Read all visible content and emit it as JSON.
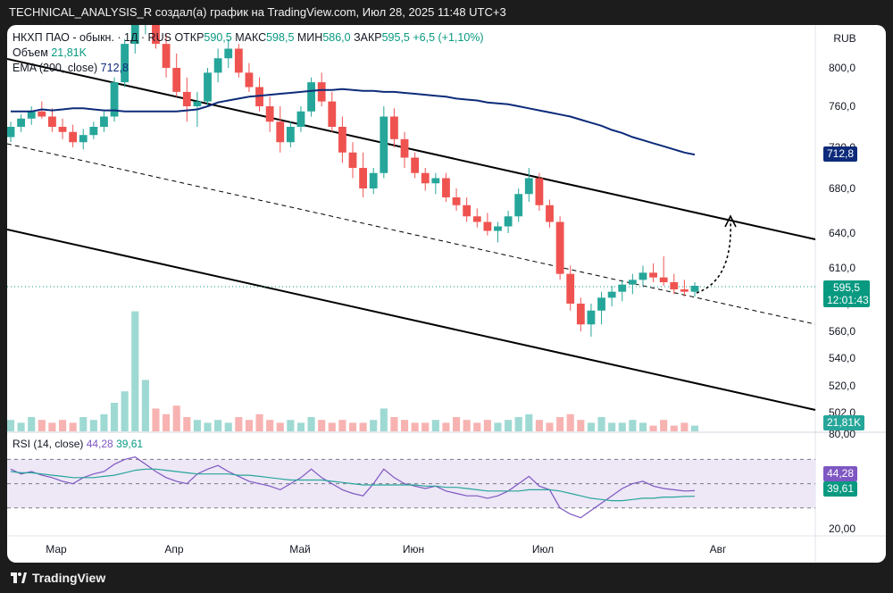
{
  "header": {
    "caption": "TECHNICAL_ANALYSIS_R создал(а) график на TradingView.com, Июл 28, 2025 11:48 UTC+3"
  },
  "legend": {
    "symbol": "НКХП ПАО - обыкн. · 1Д · RUS",
    "open_label": "ОТКР",
    "open_value": "590,5",
    "high_label": "МАКС",
    "high_value": "598,5",
    "low_label": "МИН",
    "low_value": "586,0",
    "close_label": "ЗАКР",
    "close_value": "595,5",
    "change": "+6,5 (+1,10%)",
    "volume_label": "Объем",
    "volume_value": "21,81K",
    "ema_label": "EMA (200, close)",
    "ema_value": "712,8"
  },
  "currency": "RUB",
  "price_axis": {
    "ticks": [
      "800,0",
      "760,0",
      "720,0",
      "680,0",
      "640,0",
      "610,0",
      "580,0",
      "560,0",
      "540,0",
      "520,0",
      "502,0"
    ],
    "tick_values": [
      800,
      760,
      720,
      680,
      640,
      610,
      580,
      560,
      540,
      520,
      502
    ],
    "last_price": "595,5",
    "countdown": "12:01:43",
    "ema_tag": "712,8",
    "volume_tag": "21,81K"
  },
  "rsi": {
    "label": "RSI (14, close)",
    "rsi_value": "44,28",
    "ma_value": "39,61",
    "axis_ticks": [
      "80,00",
      "20,00"
    ],
    "tag_rsi": "44,28",
    "tag_ma": "39,61"
  },
  "time_axis": {
    "labels": [
      "Мар",
      "Апр",
      "Май",
      "Июн",
      "Июл",
      "Авг"
    ]
  },
  "footer": {
    "brand": "TradingView"
  },
  "colors": {
    "up": "#26a69a",
    "down": "#ef5350",
    "ema": "#0d2b7a",
    "rsi": "#7e57c2",
    "rsi_ma": "#26a69a",
    "rsi_band": "#ede7f6"
  },
  "chart_data": {
    "type": "candlestick",
    "ema200": [
      755,
      755,
      755,
      757,
      756,
      757,
      758,
      758,
      757,
      756,
      756,
      755,
      755,
      755,
      755,
      755,
      755,
      756,
      757,
      760,
      764,
      766,
      768,
      770,
      771,
      772,
      773,
      774,
      775,
      776,
      777,
      777,
      778,
      777,
      776,
      776,
      775,
      775,
      774,
      773,
      772,
      771,
      770,
      768,
      767,
      766,
      764,
      763,
      762,
      760,
      758,
      756,
      754,
      752,
      750,
      747,
      744,
      741,
      737,
      734,
      730,
      727,
      724,
      721,
      718,
      715,
      713
    ],
    "candles": [
      [
        730,
        745,
        725,
        740
      ],
      [
        740,
        752,
        735,
        748
      ],
      [
        748,
        760,
        742,
        755
      ],
      [
        755,
        765,
        748,
        750
      ],
      [
        750,
        758,
        735,
        740
      ],
      [
        740,
        748,
        728,
        735
      ],
      [
        735,
        742,
        720,
        725
      ],
      [
        725,
        738,
        718,
        732
      ],
      [
        732,
        745,
        728,
        740
      ],
      [
        740,
        755,
        735,
        750
      ],
      [
        750,
        790,
        745,
        785
      ],
      [
        785,
        830,
        780,
        825
      ],
      [
        825,
        850,
        815,
        845
      ],
      [
        845,
        860,
        835,
        850
      ],
      [
        850,
        855,
        820,
        825
      ],
      [
        825,
        835,
        790,
        800
      ],
      [
        800,
        815,
        770,
        775
      ],
      [
        775,
        790,
        745,
        760
      ],
      [
        760,
        775,
        740,
        765
      ],
      [
        765,
        800,
        760,
        795
      ],
      [
        795,
        820,
        785,
        810
      ],
      [
        810,
        830,
        800,
        820
      ],
      [
        820,
        825,
        790,
        795
      ],
      [
        795,
        805,
        775,
        780
      ],
      [
        780,
        790,
        755,
        760
      ],
      [
        760,
        770,
        735,
        745
      ],
      [
        745,
        760,
        715,
        725
      ],
      [
        725,
        745,
        720,
        740
      ],
      [
        740,
        760,
        735,
        755
      ],
      [
        755,
        790,
        750,
        785
      ],
      [
        785,
        795,
        760,
        765
      ],
      [
        765,
        775,
        735,
        740
      ],
      [
        740,
        750,
        705,
        715
      ],
      [
        715,
        725,
        690,
        700
      ],
      [
        700,
        715,
        672,
        680
      ],
      [
        680,
        700,
        675,
        695
      ],
      [
        695,
        760,
        690,
        750
      ],
      [
        750,
        758,
        720,
        728
      ],
      [
        728,
        735,
        700,
        710
      ],
      [
        710,
        715,
        690,
        695
      ],
      [
        695,
        700,
        678,
        685
      ],
      [
        685,
        695,
        675,
        690
      ],
      [
        690,
        695,
        668,
        672
      ],
      [
        672,
        680,
        660,
        665
      ],
      [
        665,
        672,
        650,
        655
      ],
      [
        655,
        662,
        645,
        650
      ],
      [
        650,
        658,
        638,
        642
      ],
      [
        642,
        650,
        632,
        646
      ],
      [
        646,
        660,
        640,
        655
      ],
      [
        655,
        680,
        650,
        675
      ],
      [
        675,
        700,
        668,
        690
      ],
      [
        690,
        695,
        660,
        665
      ],
      [
        665,
        670,
        645,
        650
      ],
      [
        650,
        655,
        600,
        605
      ],
      [
        605,
        612,
        575,
        580
      ],
      [
        580,
        585,
        560,
        565
      ],
      [
        565,
        580,
        556,
        575
      ],
      [
        575,
        590,
        565,
        585
      ],
      [
        585,
        595,
        578,
        590
      ],
      [
        590,
        600,
        582,
        596
      ],
      [
        596,
        605,
        588,
        600
      ],
      [
        600,
        612,
        595,
        606
      ],
      [
        606,
        614,
        598,
        602
      ],
      [
        602,
        620,
        595,
        598
      ],
      [
        598,
        605,
        588,
        592
      ],
      [
        592,
        600,
        586,
        590
      ],
      [
        590,
        598,
        586,
        595
      ]
    ],
    "volume": [
      4,
      3,
      5,
      4,
      3,
      4,
      3,
      5,
      4,
      6,
      10,
      14,
      42,
      18,
      8,
      6,
      9,
      5,
      4,
      3,
      4,
      3,
      5,
      4,
      6,
      4,
      3,
      4,
      3,
      5,
      4,
      3,
      4,
      3,
      3,
      4,
      8,
      5,
      4,
      3,
      3,
      4,
      3,
      5,
      4,
      3,
      4,
      3,
      4,
      5,
      6,
      4,
      3,
      5,
      6,
      4,
      3,
      5,
      3,
      3,
      4,
      3,
      2,
      4,
      2,
      3,
      2
    ],
    "rsi": [
      62,
      58,
      60,
      57,
      55,
      52,
      50,
      55,
      58,
      60,
      66,
      70,
      72,
      66,
      60,
      55,
      52,
      50,
      58,
      62,
      65,
      60,
      56,
      52,
      50,
      48,
      45,
      50,
      55,
      62,
      55,
      50,
      45,
      42,
      40,
      50,
      62,
      55,
      50,
      48,
      46,
      48,
      44,
      42,
      40,
      40,
      38,
      40,
      44,
      50,
      56,
      48,
      45,
      30,
      25,
      22,
      28,
      34,
      40,
      46,
      50,
      52,
      48,
      46,
      45,
      44,
      44.28
    ],
    "rsi_ma": [
      60,
      59,
      59,
      58,
      57,
      56,
      55,
      55,
      55,
      56,
      57,
      59,
      61,
      62,
      62,
      61,
      60,
      59,
      58,
      58,
      58,
      58,
      57,
      57,
      56,
      55,
      54,
      53,
      53,
      53,
      53,
      52,
      51,
      50,
      49,
      49,
      49,
      49,
      49,
      49,
      48,
      48,
      47,
      47,
      46,
      45,
      44,
      44,
      44,
      44,
      45,
      45,
      45,
      44,
      42,
      40,
      38,
      37,
      36,
      36,
      37,
      38,
      38,
      39,
      39,
      39.5,
      39.61
    ],
    "ylim": [
      502,
      830
    ]
  }
}
